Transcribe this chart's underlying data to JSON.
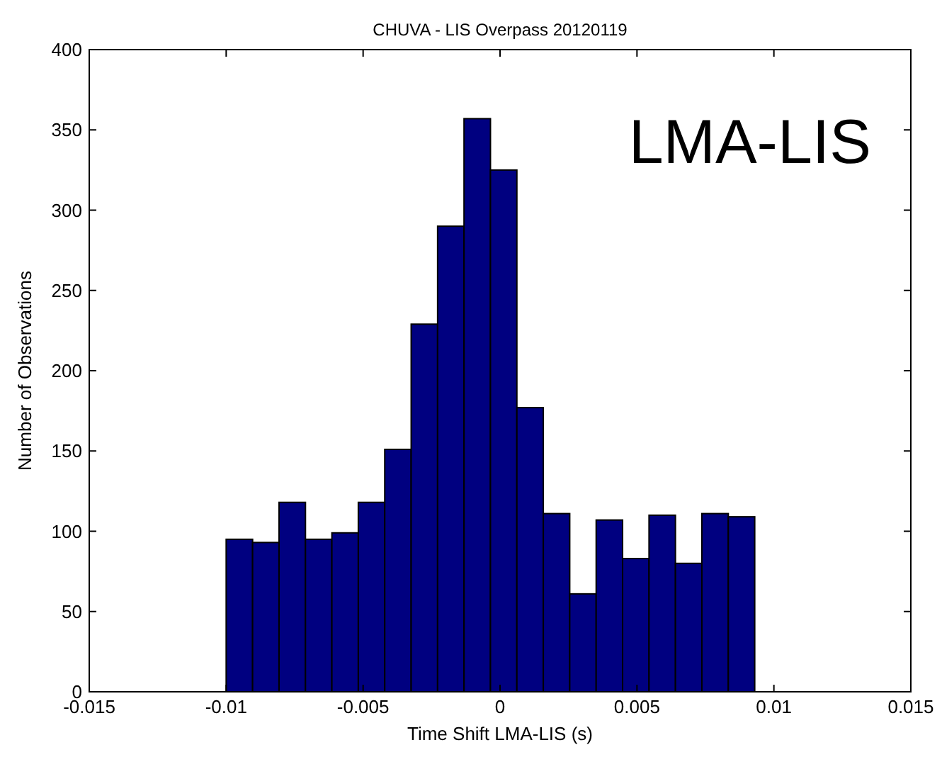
{
  "chart_data": {
    "type": "histogram",
    "title": "CHUVA - LIS Overpass 20120119",
    "xlabel": "Time Shift LMA-LIS (s)",
    "ylabel": "Number of Observations",
    "annotations": [
      "LMA-LIS"
    ],
    "bins": [
      -0.01,
      -0.009035,
      -0.00807,
      -0.007105,
      -0.00614,
      -0.005175,
      -0.00421,
      -0.003245,
      -0.00228,
      -0.001315,
      -0.00035,
      0.000615,
      0.00158,
      0.002545,
      0.00351,
      0.004475,
      0.00544,
      0.006405,
      0.00737,
      0.008335,
      0.0093
    ],
    "values": [
      95,
      93,
      118,
      95,
      99,
      118,
      151,
      229,
      290,
      357,
      325,
      177,
      111,
      61,
      107,
      83,
      110,
      80,
      111,
      109
    ],
    "color": "#000080",
    "xlim": [
      -0.015,
      0.015
    ],
    "xticks": [
      -0.015,
      -0.01,
      -0.005,
      0,
      0.005,
      0.01,
      0.015
    ],
    "ylim": [
      0,
      400
    ],
    "yticks": [
      0,
      50,
      100,
      150,
      200,
      250,
      300,
      350,
      400
    ],
    "grid": false
  }
}
